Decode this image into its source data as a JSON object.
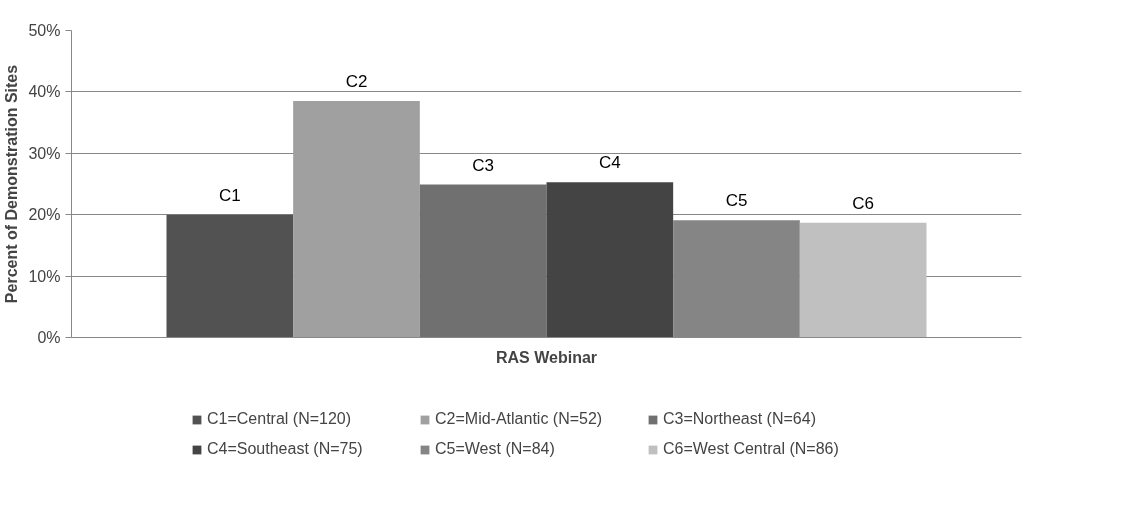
{
  "chart_data": {
    "type": "bar",
    "ylabel": "Percent of Demonstration Sites",
    "categories": [
      "RAS Webinar"
    ],
    "series": [
      {
        "name": "C1=Central (N=120)",
        "color": "#525252",
        "values": [
          20.0
        ]
      },
      {
        "name": "C2=Mid-Atlantic (N=52)",
        "color": "#a0a0a0",
        "values": [
          38.5
        ]
      },
      {
        "name": "C3=Northeast (N=64)",
        "color": "#707070",
        "values": [
          24.9
        ]
      },
      {
        "name": "C4=Southeast (N=75)",
        "color": "#444444",
        "values": [
          25.3
        ]
      },
      {
        "name": "C5=West (N=84)",
        "color": "#858585",
        "values": [
          19.1
        ]
      },
      {
        "name": "C6=West Central (N=86)",
        "color": "#c0c0c0",
        "values": [
          18.7
        ]
      }
    ],
    "annotations": [
      "C1",
      "C2",
      "C3",
      "C4",
      "C5",
      "C6"
    ],
    "ylim": [
      0,
      50
    ],
    "yticks": [
      {
        "value": 0,
        "label": "0%"
      },
      {
        "value": 10,
        "label": "10%"
      },
      {
        "value": 20,
        "label": "20%"
      },
      {
        "value": 30,
        "label": "30%"
      },
      {
        "value": 40,
        "label": "40%"
      },
      {
        "value": 50,
        "label": "50%"
      }
    ],
    "grid": "y",
    "legend": "bottom"
  }
}
